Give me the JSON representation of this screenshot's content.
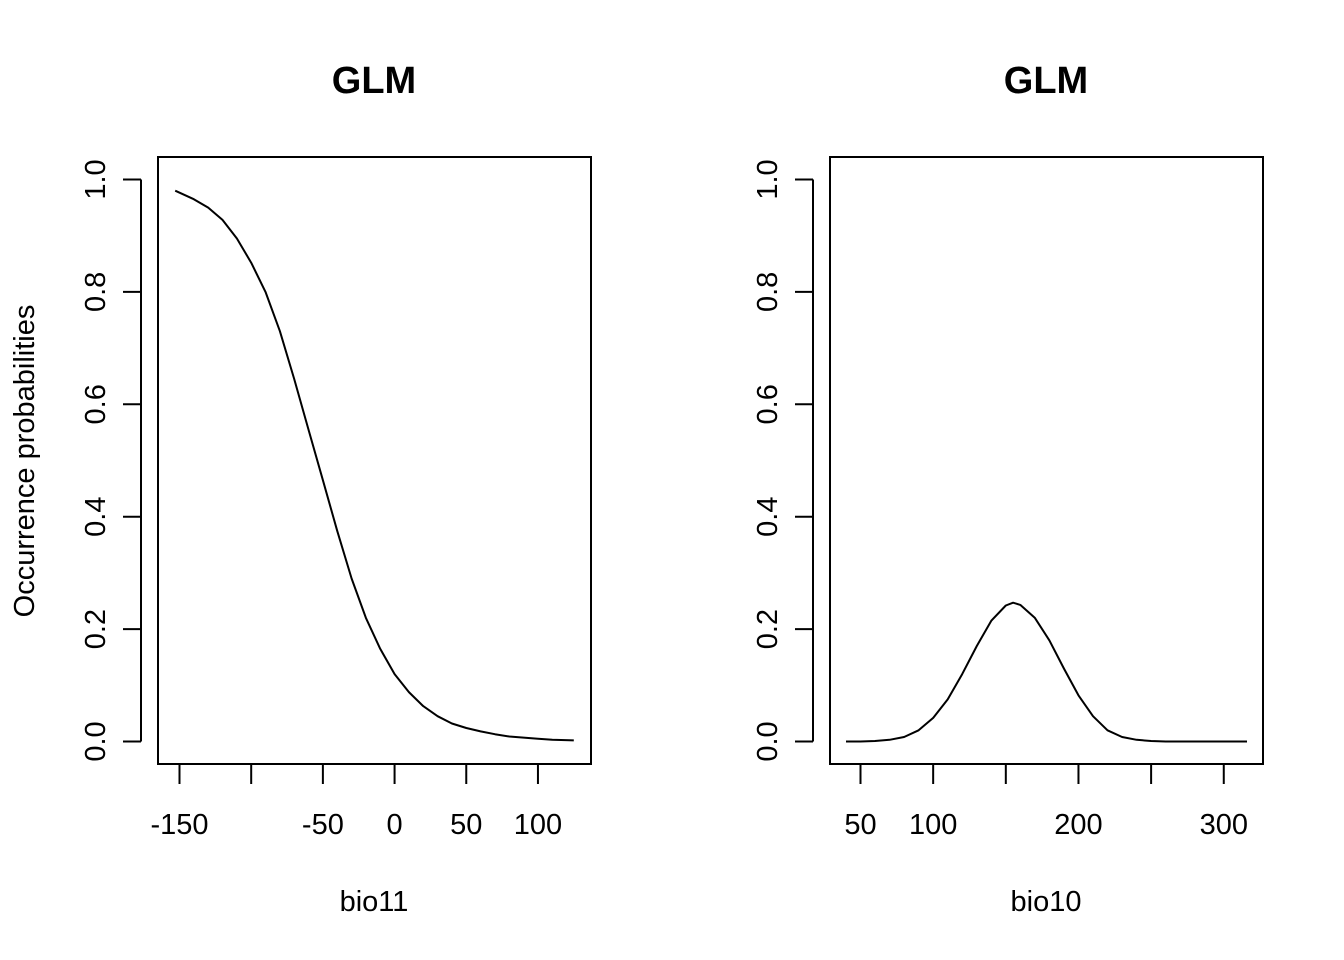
{
  "chart_data": [
    {
      "type": "line",
      "title": "GLM",
      "xlabel": "bio11",
      "ylabel": "Occurrence probabilities",
      "xlim": [
        -165,
        137
      ],
      "ylim": [
        -0.04,
        1.04
      ],
      "x_ticks": [
        -150,
        -100,
        -50,
        0,
        50,
        100
      ],
      "x_tick_labels": [
        "-150",
        "",
        "-50",
        "0",
        "50",
        "100"
      ],
      "y_ticks": [
        0.0,
        0.2,
        0.4,
        0.6,
        0.8,
        1.0
      ],
      "y_tick_labels": [
        "0.0",
        "0.2",
        "0.4",
        "0.6",
        "0.8",
        "1.0"
      ],
      "series": [
        {
          "x": [
            -153,
            -140,
            -130,
            -120,
            -110,
            -100,
            -90,
            -80,
            -70,
            -60,
            -50,
            -40,
            -30,
            -20,
            -10,
            0,
            10,
            20,
            30,
            40,
            50,
            60,
            70,
            80,
            90,
            100,
            110,
            125
          ],
          "y": [
            0.98,
            0.965,
            0.95,
            0.928,
            0.895,
            0.852,
            0.8,
            0.73,
            0.645,
            0.555,
            0.465,
            0.375,
            0.29,
            0.22,
            0.165,
            0.12,
            0.088,
            0.063,
            0.045,
            0.032,
            0.024,
            0.018,
            0.013,
            0.009,
            0.007,
            0.005,
            0.003,
            0.002
          ]
        }
      ]
    },
    {
      "type": "line",
      "title": "GLM",
      "xlabel": "bio10",
      "ylabel": "",
      "xlim": [
        29,
        327
      ],
      "ylim": [
        -0.04,
        1.04
      ],
      "x_ticks": [
        50,
        100,
        150,
        200,
        250,
        300
      ],
      "x_tick_labels": [
        "50",
        "100",
        "",
        "200",
        "",
        "300"
      ],
      "y_ticks": [
        0.0,
        0.2,
        0.4,
        0.6,
        0.8,
        1.0
      ],
      "y_tick_labels": [
        "0.0",
        "0.2",
        "0.4",
        "0.6",
        "0.8",
        "1.0"
      ],
      "series": [
        {
          "x": [
            40,
            50,
            60,
            70,
            80,
            90,
            100,
            110,
            120,
            130,
            140,
            150,
            155,
            160,
            170,
            180,
            190,
            200,
            210,
            220,
            230,
            240,
            250,
            260,
            280,
            300,
            316
          ],
          "y": [
            0.0,
            0.0,
            0.001,
            0.003,
            0.008,
            0.02,
            0.042,
            0.075,
            0.12,
            0.17,
            0.215,
            0.242,
            0.247,
            0.243,
            0.22,
            0.18,
            0.13,
            0.082,
            0.045,
            0.02,
            0.008,
            0.003,
            0.001,
            0.0,
            0.0,
            0.0,
            0.0
          ]
        }
      ]
    }
  ]
}
